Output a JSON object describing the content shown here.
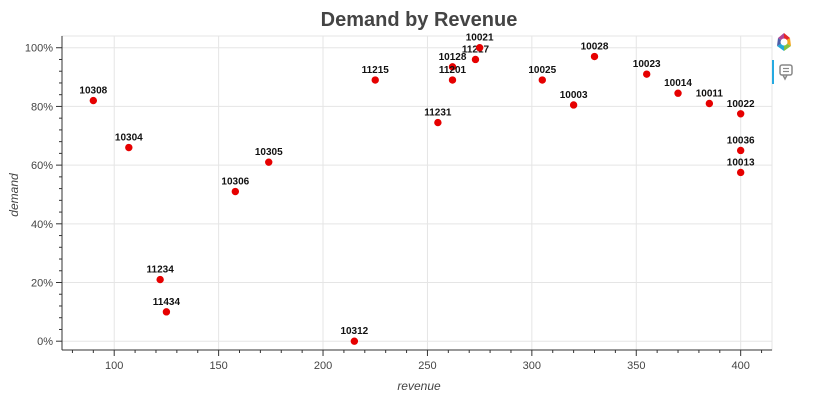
{
  "chart_data": {
    "type": "scatter",
    "title": "Demand by Revenue",
    "xlabel": "revenue",
    "ylabel": "demand",
    "xlim": [
      75,
      415
    ],
    "ylim": [
      -0.03,
      1.04
    ],
    "x_ticks": [
      100,
      150,
      200,
      250,
      300,
      350,
      400
    ],
    "y_ticks": [
      0,
      0.2,
      0.4,
      0.6,
      0.8,
      1.0
    ],
    "y_tick_labels": [
      "0%",
      "20%",
      "40%",
      "60%",
      "80%",
      "100%"
    ],
    "grid": true,
    "point_color": "#e60000",
    "points": [
      {
        "label": "10308",
        "x": 90,
        "y": 0.82
      },
      {
        "label": "10304",
        "x": 107,
        "y": 0.66
      },
      {
        "label": "11234",
        "x": 122,
        "y": 0.21
      },
      {
        "label": "11434",
        "x": 125,
        "y": 0.1
      },
      {
        "label": "10306",
        "x": 158,
        "y": 0.51
      },
      {
        "label": "10305",
        "x": 174,
        "y": 0.61
      },
      {
        "label": "10312",
        "x": 215,
        "y": 0.0
      },
      {
        "label": "11215",
        "x": 225,
        "y": 0.89
      },
      {
        "label": "11231",
        "x": 255,
        "y": 0.745
      },
      {
        "label": "10128",
        "x": 262,
        "y": 0.935
      },
      {
        "label": "11201",
        "x": 262,
        "y": 0.89
      },
      {
        "label": "11217",
        "x": 273,
        "y": 0.96
      },
      {
        "label": "10021",
        "x": 275,
        "y": 1.0
      },
      {
        "label": "10025",
        "x": 305,
        "y": 0.89
      },
      {
        "label": "10003",
        "x": 320,
        "y": 0.805
      },
      {
        "label": "10028",
        "x": 330,
        "y": 0.97
      },
      {
        "label": "10023",
        "x": 355,
        "y": 0.91
      },
      {
        "label": "10014",
        "x": 370,
        "y": 0.845
      },
      {
        "label": "10011",
        "x": 385,
        "y": 0.81
      },
      {
        "label": "10022",
        "x": 400,
        "y": 0.775
      },
      {
        "label": "10036",
        "x": 400,
        "y": 0.65
      },
      {
        "label": "10013",
        "x": 400,
        "y": 0.575
      }
    ]
  },
  "toolbar": {
    "logo_icon": "bokeh-logo-icon",
    "hover_icon": "hover-tooltip-icon"
  }
}
